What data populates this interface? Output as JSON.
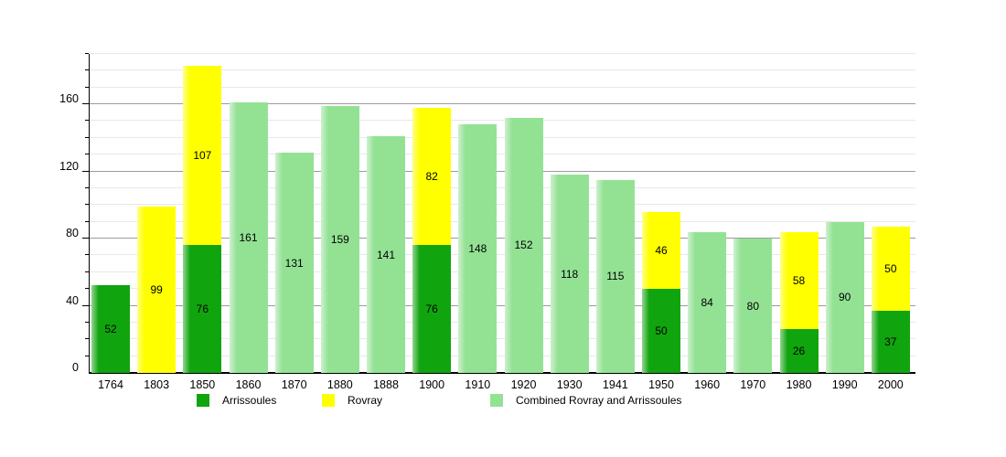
{
  "chart_data": {
    "type": "bar",
    "stacked": true,
    "title": "",
    "xlabel": "",
    "ylabel": "",
    "categories": [
      "1764",
      "1803",
      "1850",
      "1860",
      "1870",
      "1880",
      "1888",
      "1900",
      "1910",
      "1920",
      "1930",
      "1941",
      "1950",
      "1960",
      "1970",
      "1980",
      "1990",
      "2000"
    ],
    "series": [
      {
        "name": "Arrissoules",
        "color": "#10a40e",
        "values": [
          52,
          null,
          76,
          null,
          null,
          null,
          null,
          76,
          null,
          null,
          null,
          null,
          50,
          null,
          null,
          26,
          null,
          37
        ]
      },
      {
        "name": "Rovray",
        "color": "#ffff00",
        "values": [
          null,
          99,
          107,
          null,
          null,
          null,
          null,
          82,
          null,
          null,
          null,
          null,
          46,
          null,
          null,
          58,
          null,
          50
        ]
      },
      {
        "name": "Combined Rovray and Arrissoules",
        "color": "#93e294",
        "values": [
          null,
          null,
          null,
          161,
          131,
          159,
          141,
          null,
          148,
          152,
          118,
          115,
          null,
          84,
          80,
          null,
          90,
          null
        ]
      }
    ],
    "totals": [
      52,
      99,
      183,
      161,
      131,
      159,
      141,
      158,
      148,
      152,
      118,
      115,
      96,
      84,
      80,
      84,
      90,
      87
    ],
    "ylim": [
      0,
      190
    ],
    "yticks": [
      0,
      40,
      80,
      120,
      160
    ],
    "minor_grid_step": 10,
    "grid": true,
    "show_value_labels": true,
    "legend_position": "bottom",
    "legend": [
      "Arrissoules",
      "Rovray",
      "Combined Rovray and Arrissoules"
    ]
  },
  "colors": {
    "background": "#ffffff",
    "axis": "#000000",
    "major_grid": "#9c9c9c",
    "minor_grid": "#e8e8e8",
    "text": "#000000",
    "arrissoules": "#10a40e",
    "rovray": "#ffff00",
    "combined": "#93e294"
  }
}
